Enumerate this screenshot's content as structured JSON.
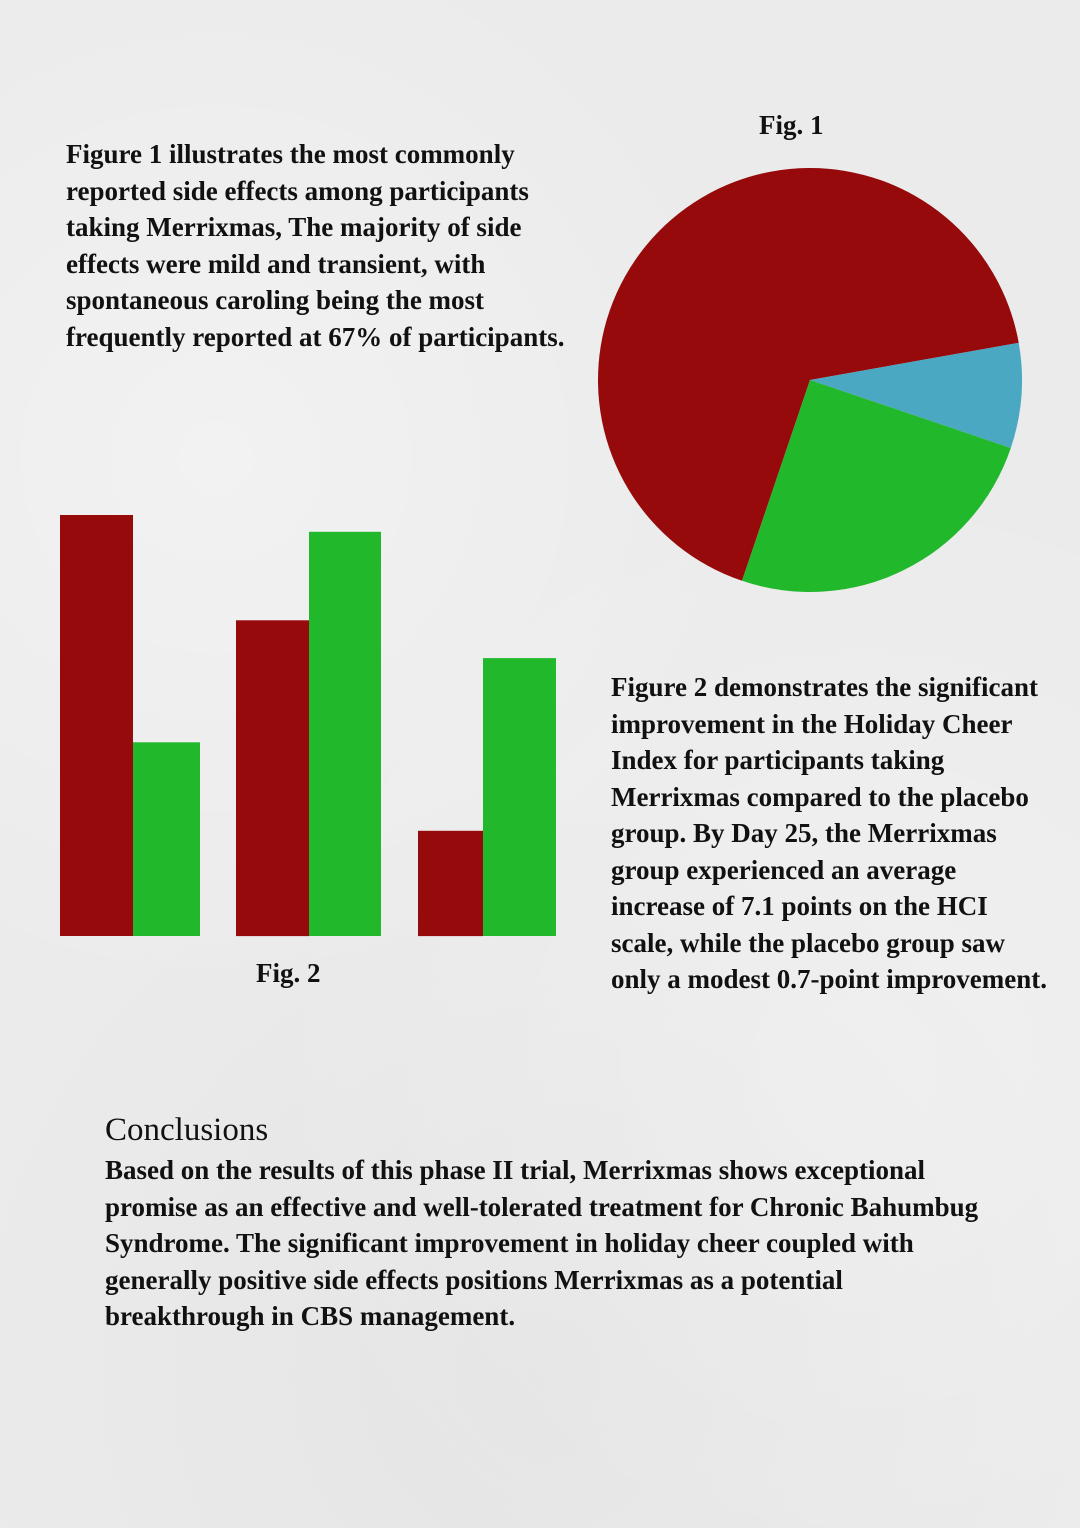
{
  "intro": {
    "text": "Figure 1 illustrates the most commonly reported side effects among participants taking Merrixmas, The majority of side effects were mild and transient, with spontaneous caroling being the most frequently reported at 67% of participants."
  },
  "fig1": {
    "label": "Fig. 1"
  },
  "fig2": {
    "label": "Fig. 2",
    "text": "Figure 2 demonstrates the significant improvement in the Holiday Cheer Index for participants taking Merrixmas compared to the placebo group. By Day 25, the Merrixmas group experienced an average increase of 7.1 points on the HCI scale, while the placebo group saw only a modest 0.7-point improvement."
  },
  "conclusions": {
    "heading": "Conclusions",
    "text": "Based on the results of this phase II trial, Merrixmas shows exceptional promise as an effective and well-tolerated treatment for Chronic Bahumbug Syndrome. The significant improvement in holiday cheer coupled with generally positive side effects positions Merrixmas as a potential breakthrough in CBS management."
  },
  "chart_data": [
    {
      "type": "pie",
      "slices": [
        {
          "value": 67,
          "color": "#960a0c"
        },
        {
          "value": 8,
          "color": "#4aa8c2"
        },
        {
          "value": 25,
          "color": "#22b82c"
        }
      ]
    },
    {
      "type": "bar",
      "categories": [
        "",
        "",
        ""
      ],
      "ylim": [
        0,
        100
      ],
      "series": [
        {
          "color": "#960a0c",
          "values": [
            100,
            75,
            25
          ]
        },
        {
          "color": "#22b82c",
          "values": [
            46,
            96,
            66
          ]
        }
      ]
    }
  ]
}
